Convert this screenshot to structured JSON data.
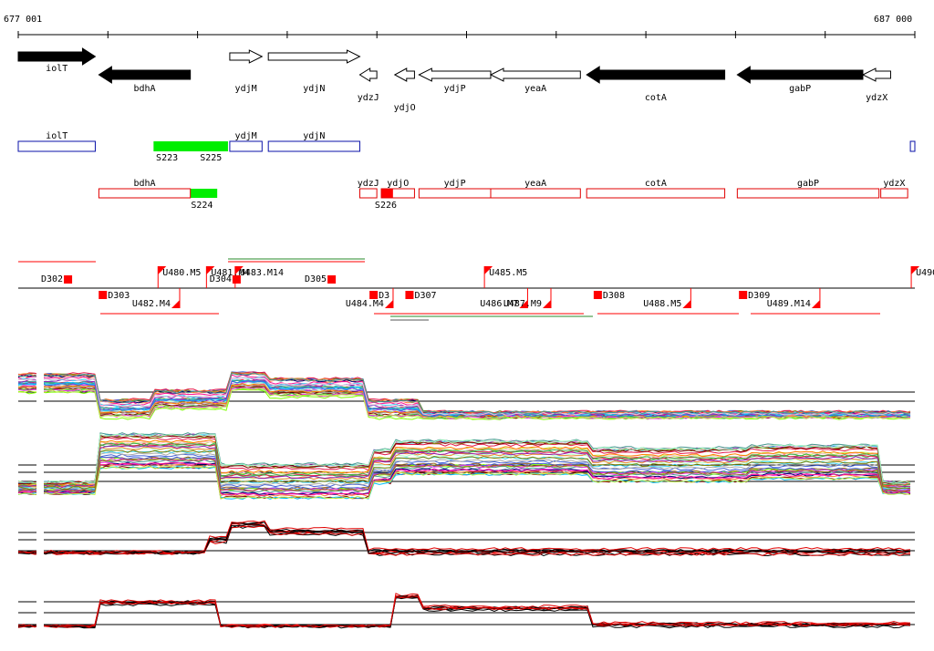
{
  "ruler": {
    "start_label": "677 001",
    "end_label": "687 000",
    "start": 677001,
    "end": 687000
  },
  "colors": {
    "gene_black": "#000000",
    "gene_open": "#ffffff",
    "track_blue": "#0a12a8",
    "track_red": "#e00000",
    "highlight_green": "#00ee00",
    "marker_red": "#ff0000"
  },
  "genes": [
    {
      "name": "iolT",
      "start": 677001,
      "end": 677860,
      "strand": "+",
      "fill": "black",
      "label_row": 1
    },
    {
      "name": "bdhA",
      "start": 677900,
      "end": 678920,
      "strand": "-",
      "fill": "black",
      "label_row": 2
    },
    {
      "name": "ydjM",
      "start": 679360,
      "end": 679720,
      "strand": "+",
      "fill": "open",
      "label_row": 2
    },
    {
      "name": "ydjN",
      "start": 679790,
      "end": 680810,
      "strand": "+",
      "fill": "open",
      "label_row": 2
    },
    {
      "name": "ydzJ",
      "start": 680810,
      "end": 681000,
      "strand": "-",
      "fill": "open",
      "label_row": 3
    },
    {
      "name": "ydjO",
      "start": 681200,
      "end": 681420,
      "strand": "-",
      "fill": "open",
      "label_row": 4
    },
    {
      "name": "ydjP",
      "start": 681470,
      "end": 682270,
      "strand": "-",
      "fill": "open",
      "label_row": 2
    },
    {
      "name": "yeaA",
      "start": 682270,
      "end": 683270,
      "strand": "-",
      "fill": "open",
      "label_row": 2
    },
    {
      "name": "cotA",
      "start": 683340,
      "end": 684880,
      "strand": "-",
      "fill": "black",
      "label_row": 3
    },
    {
      "name": "gabP",
      "start": 685020,
      "end": 686420,
      "strand": "-",
      "fill": "black",
      "label_row": 2
    },
    {
      "name": "ydzX",
      "start": 686420,
      "end": 686730,
      "strand": "-",
      "fill": "open",
      "label_row": 3
    }
  ],
  "blue_track": [
    {
      "name": "iolT",
      "start": 677001,
      "end": 677860
    },
    {
      "name": "ydjM",
      "start": 679360,
      "end": 679720
    },
    {
      "name": "ydjN",
      "start": 679790,
      "end": 680810
    },
    {
      "name": "",
      "start": 686950,
      "end": 687000
    }
  ],
  "blue_highlights": [
    {
      "start": 678510,
      "end": 679340
    }
  ],
  "blue_highlight_labels": [
    {
      "text": "S223",
      "pos": 678660
    },
    {
      "text": "S225",
      "pos": 679150
    }
  ],
  "red_track": [
    {
      "name": "bdhA",
      "start": 677900,
      "end": 678920
    },
    {
      "name": "ydzJ",
      "start": 680810,
      "end": 681000
    },
    {
      "name": "ydjO",
      "start": 681050,
      "end": 681420
    },
    {
      "name": "ydjP",
      "start": 681470,
      "end": 682270
    },
    {
      "name": "yeaA",
      "start": 682270,
      "end": 683270
    },
    {
      "name": "cotA",
      "start": 683340,
      "end": 684880
    },
    {
      "name": "gabP",
      "start": 685020,
      "end": 686600
    },
    {
      "name": "ydzX",
      "start": 686620,
      "end": 686920
    }
  ],
  "red_highlights": [
    {
      "start": 678920,
      "end": 679220,
      "color": "green"
    },
    {
      "start": 681050,
      "end": 681180,
      "color": "red"
    }
  ],
  "red_highlight_labels": [
    {
      "text": "S224",
      "pos": 679050
    },
    {
      "text": "S226",
      "pos": 681100
    }
  ],
  "segments": {
    "top_labels": [
      {
        "text": "D302",
        "pos": 677490
      },
      {
        "text": "U480.M5",
        "pos": 678560
      },
      {
        "text": "U481.M4",
        "pos": 679100
      },
      {
        "text": "U483.M14",
        "pos": 679420
      },
      {
        "text": "D304",
        "pos": 679370
      },
      {
        "text": "D305",
        "pos": 680430
      },
      {
        "text": "U485.M5",
        "pos": 682200
      },
      {
        "text": "U490",
        "pos": 686960
      }
    ],
    "bottom_labels": [
      {
        "text": "D303",
        "pos": 677990
      },
      {
        "text": "U482.M4",
        "pos": 678720
      },
      {
        "text": "D3",
        "pos": 681010
      },
      {
        "text": "U484.M4",
        "pos": 681100
      },
      {
        "text": "D307",
        "pos": 681410
      },
      {
        "text": "U486.M7",
        "pos": 682600
      },
      {
        "text": "U487.M9",
        "pos": 682860
      },
      {
        "text": "D308",
        "pos": 683510
      },
      {
        "text": "U488.M5",
        "pos": 684420
      },
      {
        "text": "D309",
        "pos": 685130
      },
      {
        "text": "U489.M14",
        "pos": 685860
      }
    ]
  }
}
